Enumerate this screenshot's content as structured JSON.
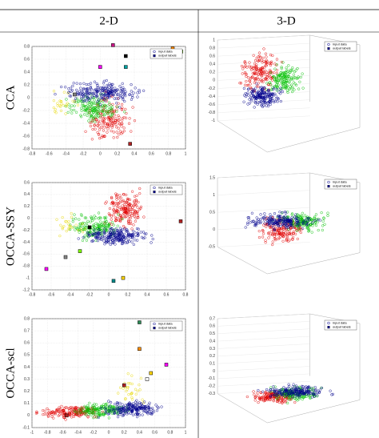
{
  "header": {
    "columns": [
      "2-D",
      "3-D"
    ]
  },
  "legend": [
    "input data",
    "output labels"
  ],
  "rows": [
    {
      "label": "CCA",
      "panel2d": {
        "xlim": [
          -0.8,
          1
        ],
        "ylim": [
          -0.8,
          0.8
        ],
        "xticks": [
          -0.8,
          -0.6,
          -0.4,
          -0.2,
          0,
          0.2,
          0.4,
          0.6,
          0.8,
          1
        ],
        "yticks": [
          0.8,
          0.6,
          0.4,
          0.2,
          0,
          -0.2,
          -0.4,
          -0.6,
          -0.8
        ],
        "points": [
          [
            0.15,
            0.82,
            "#c71585"
          ],
          [
            0.3,
            0.65,
            "#000000"
          ],
          [
            0.85,
            0.77,
            "#ff8c00"
          ],
          [
            0.95,
            0.72,
            "#7fff00"
          ],
          [
            0.0,
            0.48,
            "#ff00ff"
          ],
          [
            0.3,
            0.48,
            "#00a0a0"
          ],
          [
            0.35,
            -0.72,
            "#b22222"
          ],
          [
            -0.3,
            0.05,
            "#808080"
          ]
        ]
      },
      "panel3d": {
        "zlim": [
          -1,
          1
        ],
        "zticks": [
          1,
          0.8,
          0.6,
          0.4,
          0.2,
          0,
          -0.2,
          -0.4,
          -0.6,
          -0.8,
          -1
        ]
      }
    },
    {
      "label": "OCCA-SSY",
      "panel2d": {
        "xlim": [
          -0.8,
          0.8
        ],
        "ylim": [
          -1.2,
          0.6
        ],
        "xticks": [
          -0.8,
          -0.6,
          -0.4,
          -0.2,
          0,
          0.2,
          0.4,
          0.6,
          0.8
        ],
        "yticks": [
          0.6,
          0.4,
          0.2,
          0,
          -0.2,
          -0.4,
          -0.6,
          -0.8,
          -1,
          -1.2
        ],
        "points": [
          [
            0.75,
            -0.05,
            "#b22222"
          ],
          [
            -0.65,
            -0.85,
            "#ff00ff"
          ],
          [
            0.05,
            -1.05,
            "#008b8b"
          ],
          [
            0.15,
            -1.0,
            "#ffd700"
          ],
          [
            -0.2,
            -0.15,
            "#000000"
          ],
          [
            -0.3,
            -0.55,
            "#7fff00"
          ],
          [
            -0.45,
            -0.65,
            "#888888"
          ]
        ]
      },
      "panel3d": {
        "zlim": [
          -0.5,
          1.5
        ],
        "zticks": [
          1.5,
          1,
          0.5,
          0,
          -0.5
        ]
      }
    },
    {
      "label": "OCCA-scl",
      "panel2d": {
        "xlim": [
          -1,
          1
        ],
        "ylim": [
          -0.1,
          0.8
        ],
        "xticks": [
          -1,
          -0.8,
          -0.6,
          -0.4,
          -0.2,
          0,
          0.2,
          0.4,
          0.6,
          0.8,
          1
        ],
        "yticks": [
          0.8,
          0.7,
          0.6,
          0.5,
          0.4,
          0.3,
          0.2,
          0.1,
          0,
          -0.1
        ],
        "points": [
          [
            0.4,
            0.77,
            "#2e8b57"
          ],
          [
            0.75,
            0.42,
            "#ff00ff"
          ],
          [
            0.55,
            0.35,
            "#ffd700"
          ],
          [
            0.5,
            0.3,
            "#ffffff"
          ],
          [
            0.2,
            0.25,
            "#b22222"
          ],
          [
            0.4,
            0.55,
            "#ff8c00"
          ],
          [
            -0.55,
            0.0,
            "#b22222"
          ]
        ]
      },
      "panel3d": {
        "zlim": [
          -0.3,
          0.7
        ],
        "zticks": [
          0.7,
          0.6,
          0.5,
          0.4,
          0.3,
          0.2,
          0.1,
          0,
          -0.1,
          -0.2,
          -0.3
        ]
      }
    }
  ]
}
